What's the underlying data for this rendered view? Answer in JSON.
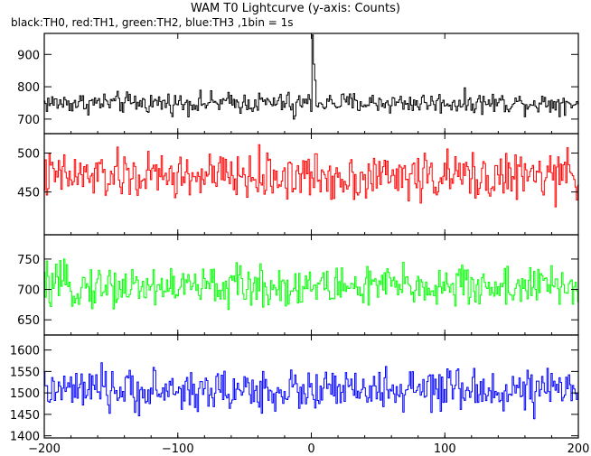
{
  "chart_data": {
    "type": "line",
    "title": "WAM T0 Lightcurve (y-axis: Counts)",
    "subtitle": "black:TH0, red:TH1, green:TH2, blue:TH3 ,1bin = 1s",
    "x_range": [
      -200,
      200
    ],
    "x_ticks": [
      -200,
      -100,
      0,
      100,
      200
    ],
    "panels": [
      {
        "name": "TH0",
        "color": "#000000",
        "ylim": [
          655,
          965
        ],
        "y_ticks": [
          700,
          800,
          900
        ],
        "mean": 750,
        "amplitude": 30,
        "features": [
          {
            "x": 1,
            "value": 960
          },
          {
            "x": 2,
            "value": 870
          },
          {
            "x": 3,
            "value": 820
          },
          {
            "x": -13,
            "value": 700
          },
          {
            "x": -12,
            "value": 710
          }
        ]
      },
      {
        "name": "TH1",
        "color": "#ff0000",
        "ylim": [
          395,
          525
        ],
        "y_ticks": [
          450,
          500
        ],
        "mean": 470,
        "amplitude": 28,
        "features": []
      },
      {
        "name": "TH2",
        "color": "#00ff00",
        "ylim": [
          625,
          790
        ],
        "y_ticks": [
          650,
          700,
          750
        ],
        "mean": 705,
        "amplitude": 32,
        "features": []
      },
      {
        "name": "TH3",
        "color": "#0000ff",
        "ylim": [
          1395,
          1635
        ],
        "y_ticks": [
          1400,
          1450,
          1500,
          1550,
          1600
        ],
        "mean": 1505,
        "amplitude": 45,
        "features": []
      }
    ]
  }
}
